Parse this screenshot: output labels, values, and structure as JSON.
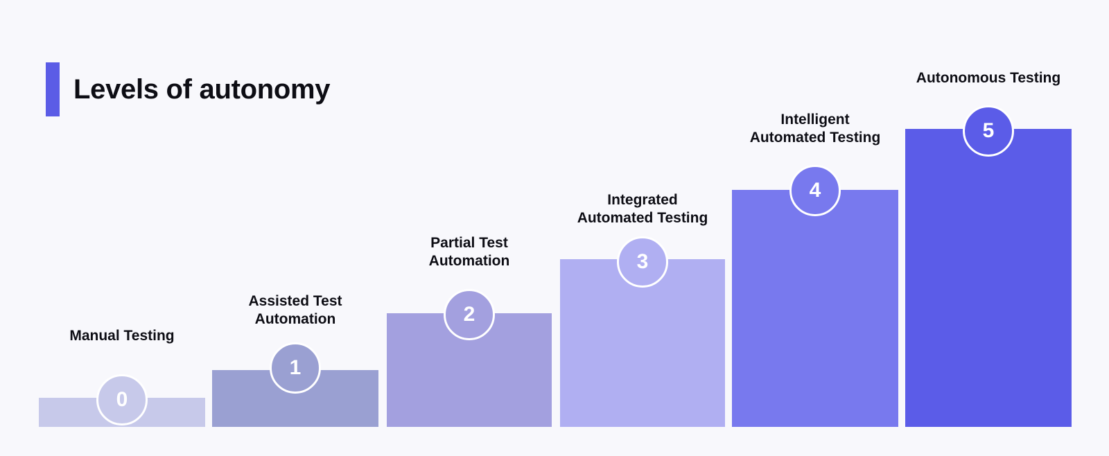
{
  "title": "Levels of autonomy",
  "accent_color": "#5b5ce6",
  "levels": [
    {
      "level": "0",
      "label_lines": [
        "Manual Testing"
      ],
      "color": "#c7c9ea"
    },
    {
      "level": "1",
      "label_lines": [
        "Assisted Test",
        "Automation"
      ],
      "color": "#9aa0d2"
    },
    {
      "level": "2",
      "label_lines": [
        "Partial Test",
        "Automation"
      ],
      "color": "#a3a0df"
    },
    {
      "level": "3",
      "label_lines": [
        "Integrated",
        "Automated Testing"
      ],
      "color": "#b0aff2"
    },
    {
      "level": "4",
      "label_lines": [
        "Intelligent",
        "Automated Testing"
      ],
      "color": "#7879ee"
    },
    {
      "level": "5",
      "label_lines": [
        "Autonomous Testing"
      ],
      "color": "#5b5ce8"
    }
  ]
}
